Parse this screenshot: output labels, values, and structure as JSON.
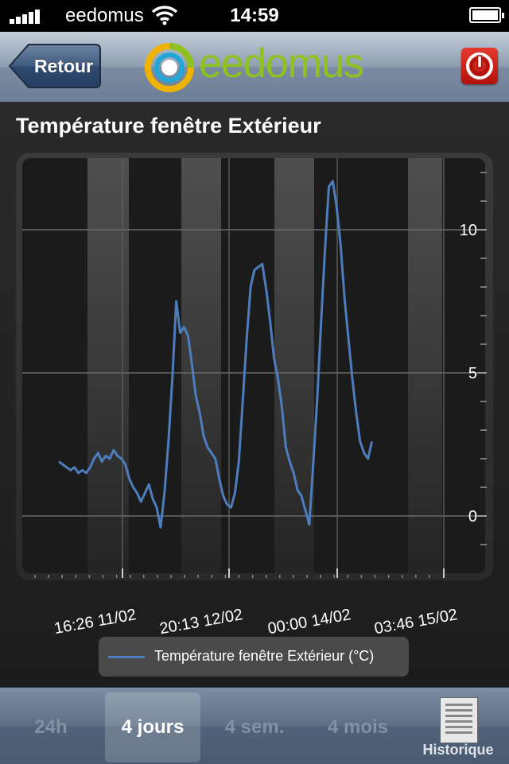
{
  "status": {
    "carrier": "eedomus",
    "time": "14:59"
  },
  "nav": {
    "back_label": "Retour",
    "logo_text": "eedomus"
  },
  "page": {
    "title": "Température fenêtre Extérieur"
  },
  "chart_data": {
    "type": "line",
    "title": "",
    "xlabel": "",
    "ylabel": "",
    "x_tick_labels": [
      "16:26 11/02",
      "20:13 12/02",
      "00:00 14/02",
      "03:46 15/02"
    ],
    "y_ticks": [
      0,
      5,
      10
    ],
    "ylim": [
      -2,
      12.5
    ],
    "grid": true,
    "legend_position": "bottom",
    "colors": {
      "line": "#4d7dbc"
    },
    "series": [
      {
        "name": "Température fenêtre Extérieur (°C)",
        "x": [
          0,
          1,
          2,
          3,
          4,
          5,
          6,
          7,
          8,
          9,
          10,
          11,
          12,
          13,
          14,
          15,
          16,
          17,
          18,
          19,
          20,
          21,
          22,
          23,
          24,
          25,
          26,
          27,
          28,
          29,
          30,
          31,
          32,
          33,
          34,
          35,
          36,
          37,
          38,
          39,
          40,
          41,
          42,
          43,
          44,
          45,
          46,
          47,
          48,
          49,
          50,
          51,
          52,
          53,
          54,
          55,
          56,
          57,
          58,
          59,
          60,
          61,
          62,
          63,
          64,
          65,
          66,
          67,
          68,
          69,
          70,
          71,
          72,
          73,
          74,
          75,
          76,
          77,
          78,
          79,
          80,
          81,
          82,
          83,
          84,
          85,
          86,
          87,
          88,
          89,
          90,
          91,
          92,
          93,
          94,
          95,
          96,
          97,
          98,
          99,
          100
        ],
        "values": [
          1.9,
          1.8,
          1.7,
          1.6,
          1.7,
          1.5,
          1.6,
          1.5,
          1.7,
          2.0,
          2.2,
          1.9,
          2.1,
          2.0,
          2.3,
          2.1,
          2.0,
          1.8,
          1.3,
          1.0,
          0.8,
          0.5,
          0.8,
          1.1,
          0.6,
          0.3,
          -0.4,
          0.8,
          2.6,
          4.8,
          7.5,
          6.4,
          6.6,
          6.3,
          5.3,
          4.2,
          3.6,
          2.8,
          2.4,
          2.2,
          2.0,
          1.3,
          0.7,
          0.4,
          0.3,
          0.8,
          1.9,
          4.0,
          6.2,
          8.0,
          8.6,
          8.7,
          8.8,
          7.9,
          6.8,
          5.5,
          4.8,
          3.8,
          2.4,
          1.9,
          1.5,
          0.9,
          0.7,
          0.2,
          -0.3,
          1.8,
          4.0,
          6.7,
          9.3,
          11.5,
          11.7,
          10.8,
          9.5,
          7.6,
          6.2,
          4.8,
          3.6,
          2.6,
          2.2,
          2.0,
          2.6,
          null,
          null,
          null,
          null,
          null,
          null,
          null,
          null,
          null,
          null,
          null,
          null,
          null,
          null,
          null,
          null,
          null,
          null,
          null,
          null
        ]
      }
    ]
  },
  "tabs": {
    "t24h": "24h",
    "t4j": "4 jours",
    "t4s": "4 sem.",
    "t4m": "4 mois",
    "historique": "Historique"
  }
}
